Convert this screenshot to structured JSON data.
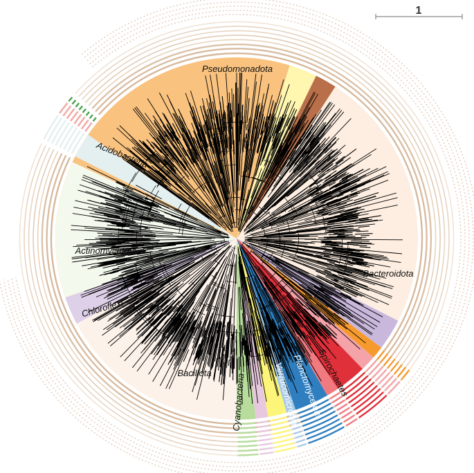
{
  "scale_bar": {
    "label": "1"
  },
  "clades": [
    {
      "id": "pseudomonadota",
      "label": "Pseudomonadota",
      "start": -110,
      "end": 17,
      "color": "#f9c27f",
      "ink": "dark"
    },
    {
      "id": "bacteroidota",
      "label": "Bacteroidota",
      "start": 47,
      "end": 117,
      "color": "#fdeee1",
      "ink": "dark"
    },
    {
      "id": "spirochaetes",
      "label": "Spirochaetes",
      "start": 117,
      "end": 127,
      "color": "#c9b8dc",
      "ink": "dark"
    },
    {
      "id": "planctomycetota",
      "label": "Planctomycetota",
      "start": 136,
      "end": 146,
      "color": "#e0303a",
      "ink": "light"
    },
    {
      "id": "verrucomicrobia",
      "label": "Verrucomicrobia",
      "start": 150,
      "end": 161,
      "color": "#2f7fc0",
      "ink": "light"
    },
    {
      "id": "cyanobacteria",
      "label": "Cyanobacteria",
      "start": 174,
      "end": 180,
      "color": "#b7dc9b",
      "ink": "dark"
    },
    {
      "id": "bacillota",
      "label": "Bacillota",
      "start": 180,
      "end": 242,
      "color": "#fdf2ea",
      "ink": "dark"
    },
    {
      "id": "chloroflexi",
      "label": "Chloroflexi",
      "start": 242,
      "end": 251,
      "color": "#ddd0e8",
      "ink": "dark"
    },
    {
      "id": "actinomycetota",
      "label": "Actinomycetota",
      "start": 251,
      "end": 295,
      "color": "#f4f9ee",
      "ink": "dark"
    },
    {
      "id": "acidobacteria",
      "label": "Acidobacteria",
      "start": 297,
      "end": 305,
      "color": "#e4efef",
      "ink": "dark"
    }
  ],
  "minor_wedges": [
    {
      "start": 17,
      "end": 26,
      "color": "#fff6b0"
    },
    {
      "start": 26,
      "end": 33,
      "color": "#b9704a"
    },
    {
      "start": 33,
      "end": 47,
      "color": "#fdeee1"
    },
    {
      "start": 127,
      "end": 131,
      "color": "#f79a2e"
    },
    {
      "start": 131,
      "end": 136,
      "color": "#f4a3a8"
    },
    {
      "start": 146,
      "end": 150,
      "color": "#f07a80"
    },
    {
      "start": 161,
      "end": 164,
      "color": "#a8cbe8"
    },
    {
      "start": 164,
      "end": 170,
      "color": "#fdf57a"
    },
    {
      "start": 170,
      "end": 174,
      "color": "#e7c8de"
    },
    {
      "start": 305,
      "end": 309,
      "color": "#f2a7a3"
    },
    {
      "start": 309,
      "end": 311,
      "color": "#4aa34a"
    }
  ],
  "colors": {
    "branch": "#000000",
    "ring": "#c8a07a",
    "accent_green": "#4aa34a",
    "accent_purple": "#7b4fa6"
  }
}
